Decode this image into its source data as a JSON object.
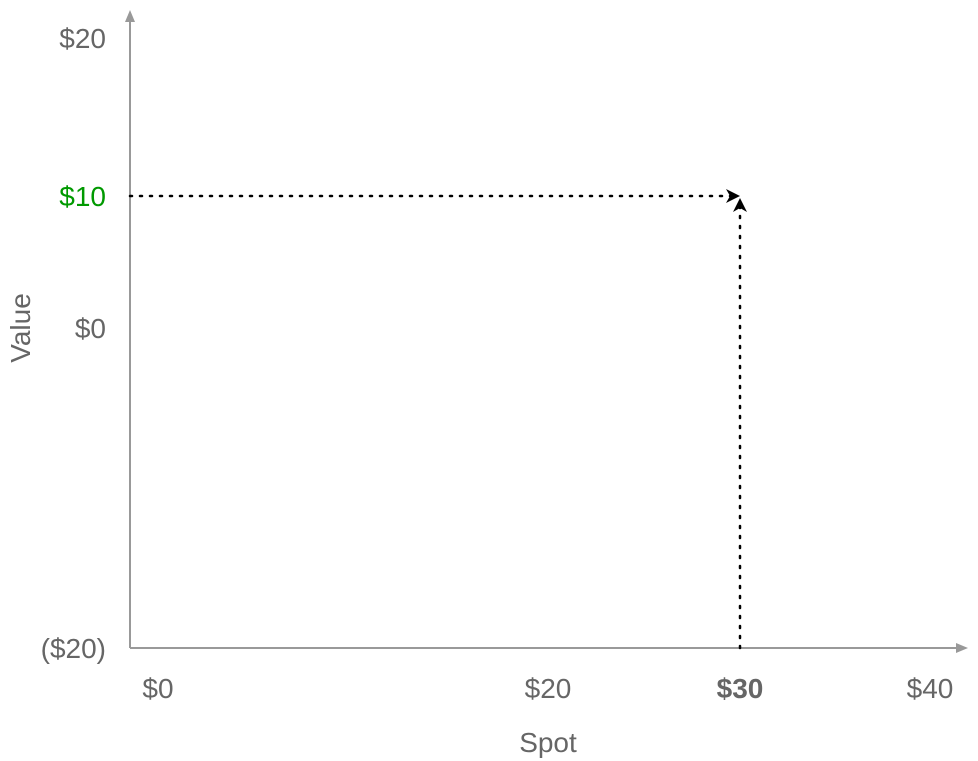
{
  "chart_data": {
    "type": "line",
    "xlabel": "Spot",
    "ylabel": "Value",
    "x_ticks": [
      {
        "value": 0,
        "label": "$0"
      },
      {
        "value": 20,
        "label": "$20"
      },
      {
        "value": 30,
        "label": "$30",
        "bold": true
      },
      {
        "value": 40,
        "label": "$40"
      }
    ],
    "y_ticks": [
      {
        "value": 20,
        "label": "$20"
      },
      {
        "value": 10,
        "label": "$10",
        "highlight": true
      },
      {
        "value": 0,
        "label": "$0"
      },
      {
        "value": -20,
        "label": "($20)"
      }
    ],
    "xlim": [
      0,
      40
    ],
    "ylim": [
      -20,
      20
    ],
    "grid": false,
    "annotation_point": {
      "x": 30,
      "y": 10
    },
    "colors": {
      "axis": "#999999",
      "text": "#666666",
      "highlight": "#009900",
      "guide": "#000000"
    }
  }
}
